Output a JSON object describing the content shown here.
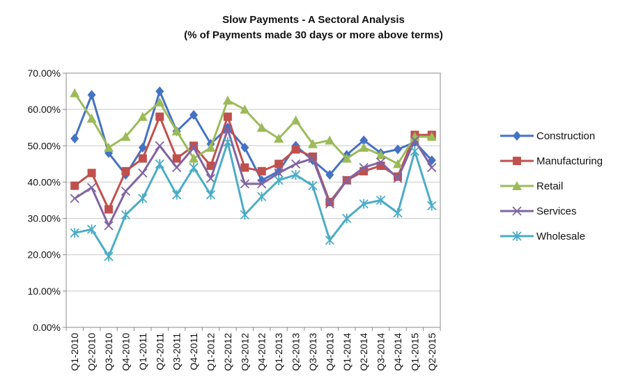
{
  "chart_data": {
    "type": "line",
    "title": "Slow Payments - A Sectoral Analysis",
    "subtitle": "(% of Payments made 30 days or more above terms)",
    "xlabel": "",
    "ylabel": "",
    "ylim": [
      0,
      0.7
    ],
    "yticks": [
      "0.00%",
      "10.00%",
      "20.00%",
      "30.00%",
      "40.00%",
      "50.00%",
      "60.00%",
      "70.00%"
    ],
    "grid": true,
    "legend": "right",
    "categories": [
      "Q1-2010",
      "Q2-2010",
      "Q3-2010",
      "Q4-2010",
      "Q1-2011",
      "Q2-2011",
      "Q3-2011",
      "Q4-2011",
      "Q1-2012",
      "Q2-2012",
      "Q3-2012",
      "Q4-2012",
      "Q1-2013",
      "Q2-2013",
      "Q3-2013",
      "Q4-2013",
      "Q1-2014",
      "Q2-2014",
      "Q3-2014",
      "Q4-2014",
      "Q1-2015",
      "Q2-2015"
    ],
    "series": [
      {
        "name": "Construction",
        "color": "#4472C4",
        "marker": "diamond",
        "values": [
          0.52,
          0.64,
          0.48,
          0.42,
          0.495,
          0.65,
          0.54,
          0.585,
          0.505,
          0.55,
          0.495,
          0.405,
          0.43,
          0.5,
          0.46,
          0.42,
          0.475,
          0.515,
          0.48,
          0.49,
          0.51,
          0.46
        ]
      },
      {
        "name": "Manufacturing",
        "color": "#C0504D",
        "marker": "square",
        "values": [
          0.39,
          0.425,
          0.325,
          0.43,
          0.465,
          0.58,
          0.465,
          0.5,
          0.445,
          0.58,
          0.44,
          0.43,
          0.45,
          0.49,
          0.47,
          0.345,
          0.405,
          0.43,
          0.445,
          0.415,
          0.53,
          0.53
        ]
      },
      {
        "name": "Retail",
        "color": "#9BBB59",
        "marker": "triangle",
        "values": [
          0.645,
          0.575,
          0.495,
          0.525,
          0.58,
          0.62,
          0.54,
          0.465,
          0.495,
          0.625,
          0.6,
          0.55,
          0.52,
          0.57,
          0.505,
          0.515,
          0.465,
          0.495,
          0.475,
          0.45,
          0.525,
          0.525
        ]
      },
      {
        "name": "Services",
        "color": "#8064A2",
        "marker": "x",
        "values": [
          0.355,
          0.385,
          0.28,
          0.375,
          0.425,
          0.5,
          0.44,
          0.495,
          0.41,
          0.545,
          0.395,
          0.395,
          0.425,
          0.45,
          0.465,
          0.34,
          0.405,
          0.44,
          0.455,
          0.41,
          0.515,
          0.44
        ]
      },
      {
        "name": "Wholesale",
        "color": "#4BACC6",
        "marker": "star",
        "values": [
          0.26,
          0.27,
          0.195,
          0.31,
          0.355,
          0.45,
          0.365,
          0.44,
          0.365,
          0.51,
          0.31,
          0.36,
          0.405,
          0.42,
          0.39,
          0.24,
          0.3,
          0.34,
          0.35,
          0.315,
          0.485,
          0.335
        ]
      }
    ]
  }
}
